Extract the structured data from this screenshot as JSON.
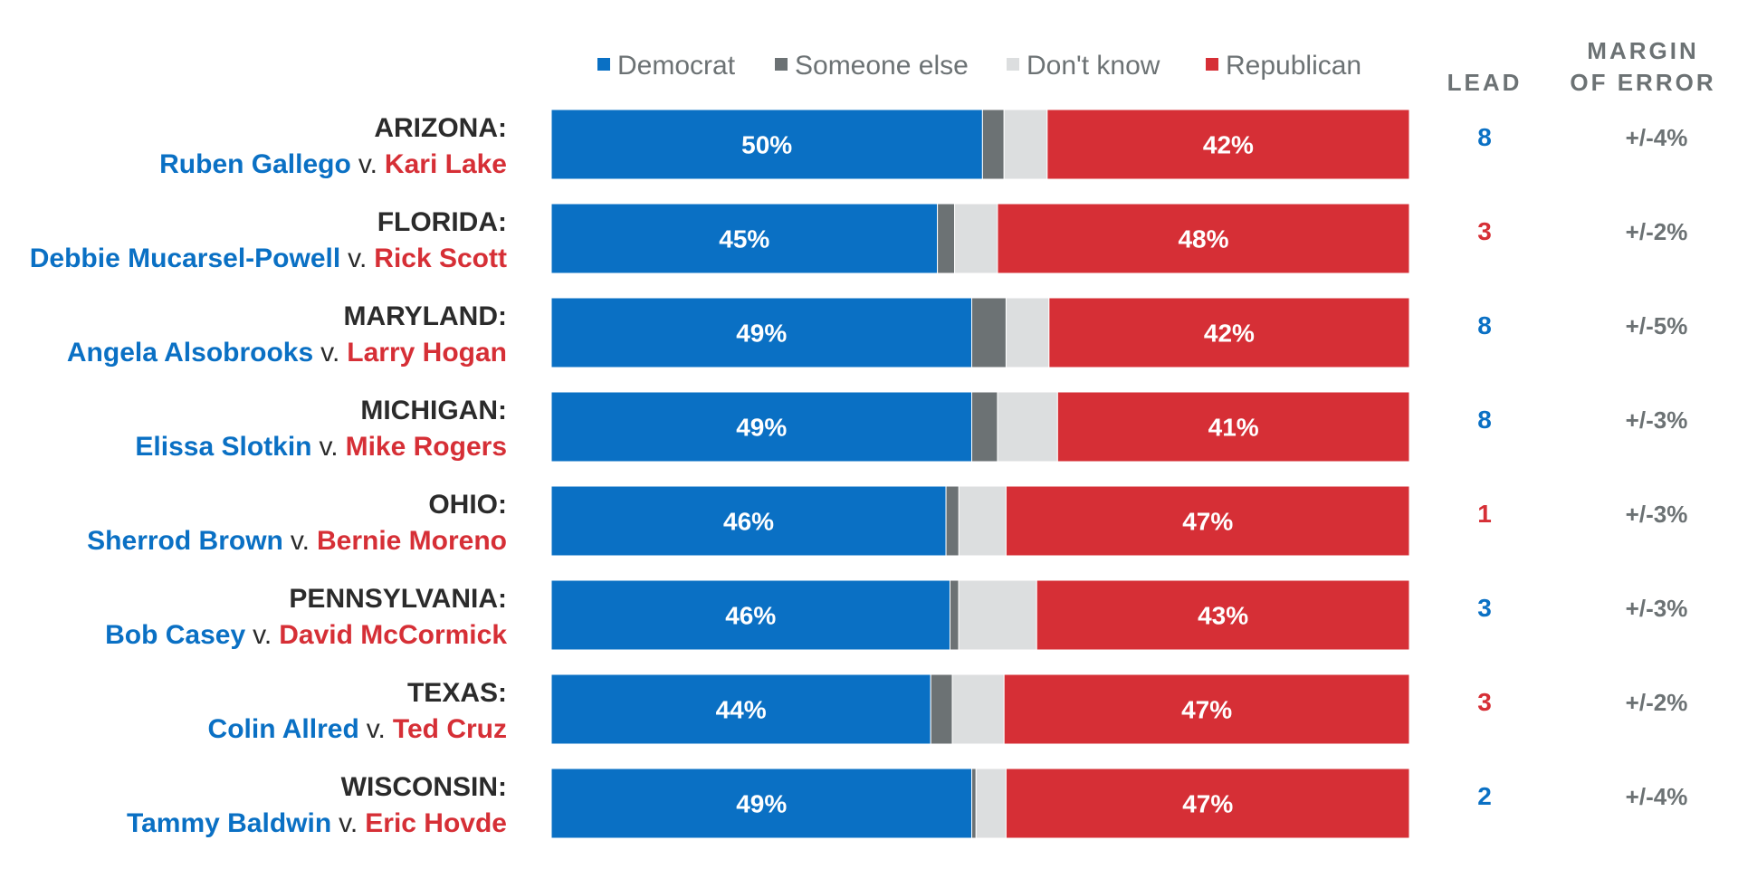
{
  "colors": {
    "democrat": "#0a70c4",
    "someone_else": "#6c7274",
    "dont_know": "#dcdedf",
    "republican": "#d62f36",
    "text_dark": "#2b2b2b",
    "text_gray": "#6c7274"
  },
  "headers": {
    "lead": "LEAD",
    "margin_line1": "MARGIN",
    "margin_line2": "OF ERROR"
  },
  "chart_data": {
    "type": "bar",
    "orientation": "horizontal",
    "stacked": true,
    "legend": [
      "Democrat",
      "Someone else",
      "Don't know",
      "Republican"
    ],
    "legend_position": "top",
    "vs_text": "v.",
    "rows": [
      {
        "state": "ARIZONA:",
        "dem_candidate": "Ruben Gallego",
        "rep_candidate": "Kari Lake",
        "democrat": 50,
        "someone_else": 2.5,
        "dont_know": 5,
        "republican": 42,
        "dem_label": "50%",
        "rep_label": "42%",
        "lead": "8",
        "lead_party": "democrat",
        "moe": "+/-4%"
      },
      {
        "state": "FLORIDA:",
        "dem_candidate": "Debbie Mucarsel-Powell",
        "rep_candidate": "Rick Scott",
        "democrat": 45,
        "someone_else": 2,
        "dont_know": 5,
        "republican": 48,
        "dem_label": "45%",
        "rep_label": "48%",
        "lead": "3",
        "lead_party": "republican",
        "moe": "+/-2%"
      },
      {
        "state": "MARYLAND:",
        "dem_candidate": "Angela Alsobrooks",
        "rep_candidate": "Larry Hogan",
        "democrat": 49,
        "someone_else": 4,
        "dont_know": 5,
        "republican": 42,
        "dem_label": "49%",
        "rep_label": "42%",
        "lead": "8",
        "lead_party": "democrat",
        "moe": "+/-5%"
      },
      {
        "state": "MICHIGAN:",
        "dem_candidate": "Elissa Slotkin",
        "rep_candidate": "Mike Rogers",
        "democrat": 49,
        "someone_else": 3,
        "dont_know": 7,
        "republican": 41,
        "dem_label": "49%",
        "rep_label": "41%",
        "lead": "8",
        "lead_party": "democrat",
        "moe": "+/-3%"
      },
      {
        "state": "OHIO:",
        "dem_candidate": "Sherrod Brown",
        "rep_candidate": "Bernie Moreno",
        "democrat": 46,
        "someone_else": 1.5,
        "dont_know": 5.5,
        "republican": 47,
        "dem_label": "46%",
        "rep_label": "47%",
        "lead": "1",
        "lead_party": "republican",
        "moe": "+/-3%"
      },
      {
        "state": "PENNSYLVANIA:",
        "dem_candidate": "Bob Casey",
        "rep_candidate": "David McCormick",
        "democrat": 46,
        "someone_else": 1,
        "dont_know": 9,
        "republican": 43,
        "dem_label": "46%",
        "rep_label": "43%",
        "lead": "3",
        "lead_party": "democrat",
        "moe": "+/-3%"
      },
      {
        "state": "TEXAS:",
        "dem_candidate": "Colin Allred",
        "rep_candidate": "Ted Cruz",
        "democrat": 44,
        "someone_else": 2.5,
        "dont_know": 6,
        "republican": 47,
        "dem_label": "44%",
        "rep_label": "47%",
        "lead": "3",
        "lead_party": "republican",
        "moe": "+/-2%"
      },
      {
        "state": "WISCONSIN:",
        "dem_candidate": "Tammy Baldwin",
        "rep_candidate": "Eric Hovde",
        "democrat": 49,
        "someone_else": 0.5,
        "dont_know": 3.5,
        "republican": 47,
        "dem_label": "49%",
        "rep_label": "47%",
        "lead": "2",
        "lead_party": "democrat",
        "moe": "+/-4%"
      }
    ]
  }
}
